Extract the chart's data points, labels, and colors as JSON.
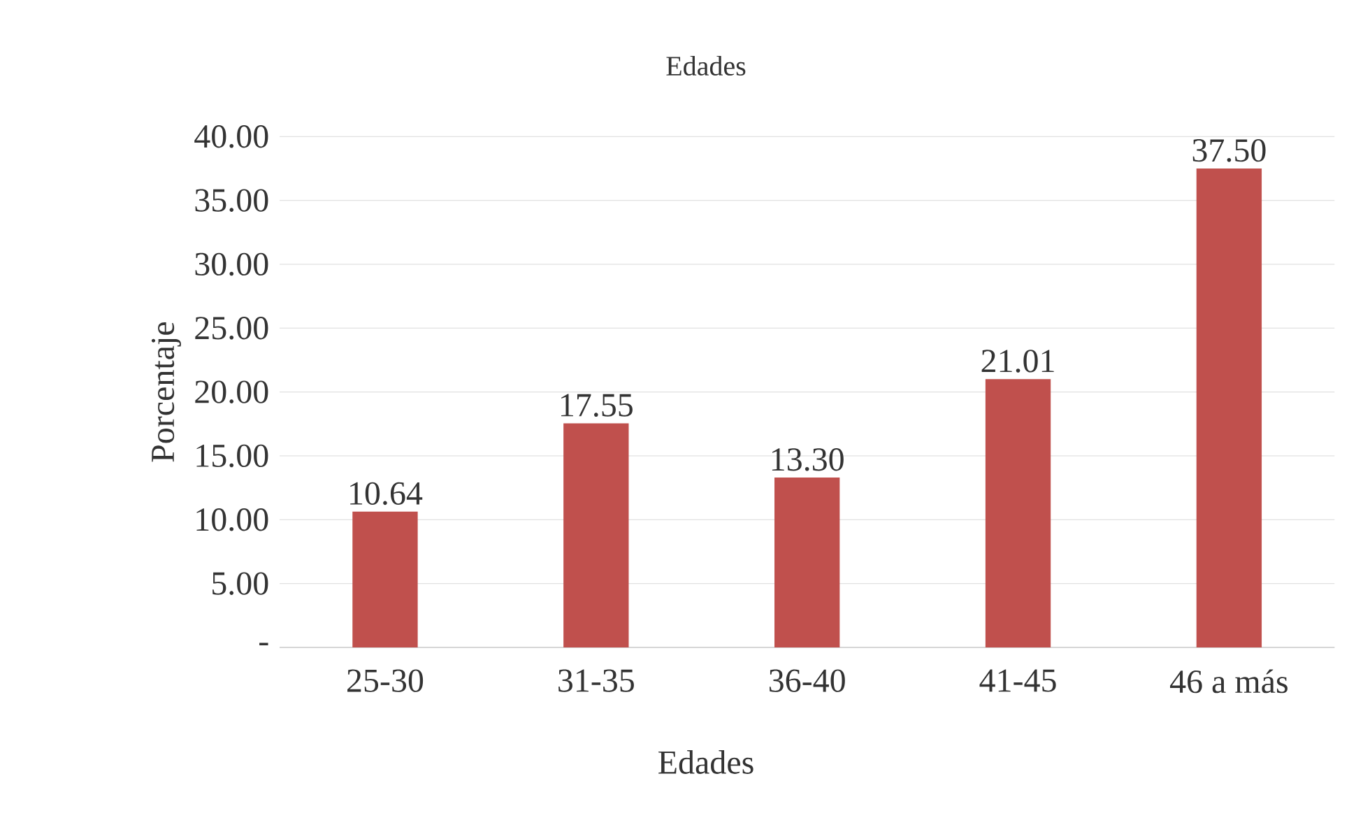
{
  "chart_data": {
    "type": "bar",
    "title": "Edades",
    "xlabel": "Edades",
    "ylabel": "Porcentaje",
    "categories": [
      "25-30",
      "31-35",
      "36-40",
      "41-45",
      "46 a más"
    ],
    "values": [
      10.64,
      17.55,
      13.3,
      21.01,
      37.5
    ],
    "value_labels": [
      "10.64",
      "17.55",
      "13.30",
      "21.01",
      "37.50"
    ],
    "color": "#c0504d",
    "ylim": [
      0,
      40
    ],
    "yticks": [
      {
        "value": 0,
        "label": "-"
      },
      {
        "value": 5,
        "label": "5.00"
      },
      {
        "value": 10,
        "label": "10.00"
      },
      {
        "value": 15,
        "label": "15.00"
      },
      {
        "value": 20,
        "label": "20.00"
      },
      {
        "value": 25,
        "label": "25.00"
      },
      {
        "value": 30,
        "label": "30.00"
      },
      {
        "value": 35,
        "label": "35.00"
      },
      {
        "value": 40,
        "label": "40.00"
      }
    ],
    "grid": "y"
  }
}
